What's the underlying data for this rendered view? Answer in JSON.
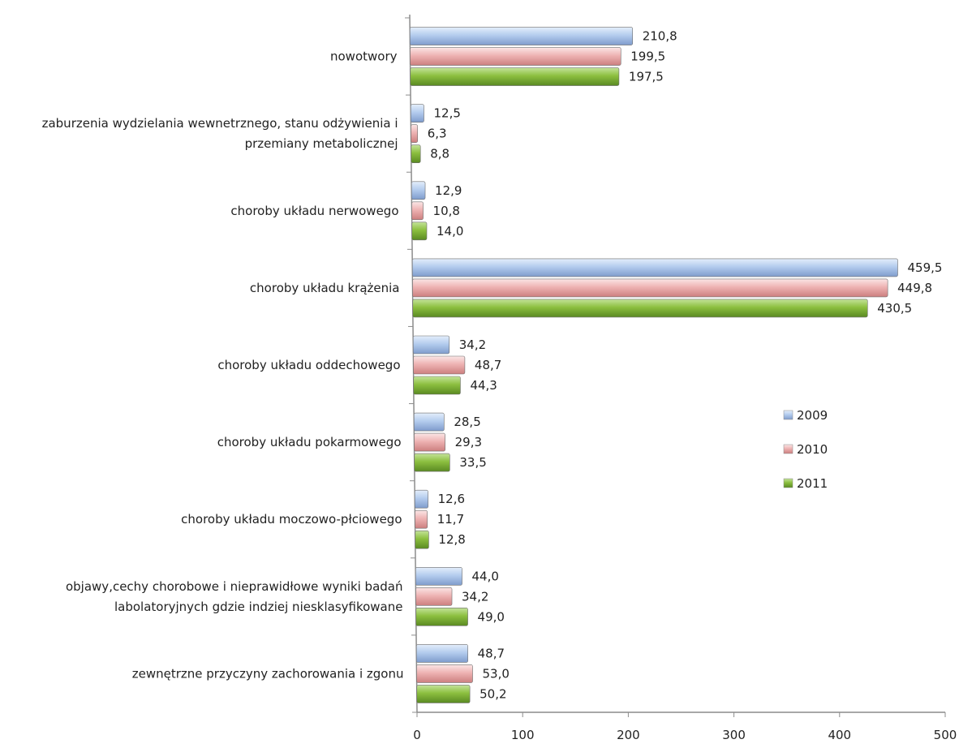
{
  "chart_data": {
    "type": "bar",
    "orientation": "horizontal",
    "title": "",
    "xlabel": "",
    "ylabel": "",
    "xlim": [
      0,
      500
    ],
    "ticks": [
      "0",
      "100",
      "200",
      "300",
      "400",
      "500"
    ],
    "tick_values": [
      0,
      100,
      200,
      300,
      400,
      500
    ],
    "grid": false,
    "legend_position": "right",
    "categories": [
      [
        "nowotwory"
      ],
      [
        "zaburzenia wydzielania wewnetrznego, stanu odżywienia i",
        "przemiany metabolicznej"
      ],
      [
        "choroby układu nerwowego"
      ],
      [
        "choroby układu krążenia"
      ],
      [
        "choroby układu oddechowego"
      ],
      [
        "choroby układu pokarmowego"
      ],
      [
        "choroby układu moczowo-płciowego"
      ],
      [
        "objawy,cechy chorobowe i nieprawidłowe wyniki badań",
        "labolatoryjnych gdzie indziej niesklasyfikowane"
      ],
      [
        "zewnętrzne przyczyny zachorowania i zgonu"
      ]
    ],
    "series": [
      {
        "name": "2009",
        "color": "#a9c4ea",
        "values": [
          210.8,
          12.5,
          12.9,
          459.5,
          34.2,
          28.5,
          12.6,
          44.0,
          48.7
        ],
        "labels": [
          "210,8",
          "12,5",
          "12,9",
          "459,5",
          "34,2",
          "28,5",
          "12,6",
          "44,0",
          "48,7"
        ]
      },
      {
        "name": "2010",
        "color": "#eaa9a9",
        "values": [
          199.5,
          6.3,
          10.8,
          449.8,
          48.7,
          29.3,
          11.7,
          34.2,
          53.0
        ],
        "labels": [
          "199,5",
          "6,3",
          "10,8",
          "449,8",
          "48,7",
          "29,3",
          "11,7",
          "34,2",
          "53,0"
        ]
      },
      {
        "name": "2011",
        "color": "#8cbf3f",
        "values": [
          197.5,
          8.8,
          14.0,
          430.5,
          44.3,
          33.5,
          12.8,
          49.0,
          50.2
        ],
        "labels": [
          "197,5",
          "8,8",
          "14,0",
          "430,5",
          "44,3",
          "33,5",
          "12,8",
          "49,0",
          "50,2"
        ]
      }
    ]
  }
}
